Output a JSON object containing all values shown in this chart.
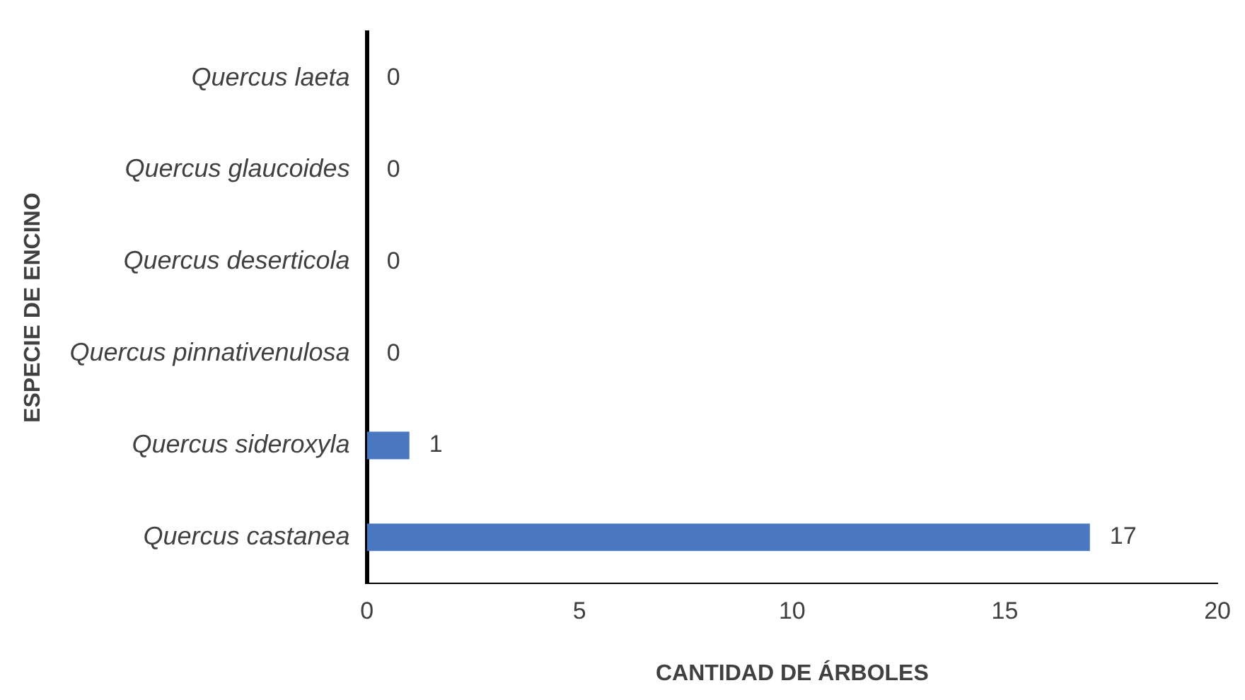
{
  "chart_data": {
    "type": "bar",
    "orientation": "horizontal",
    "xlabel": "CANTIDAD DE ÁRBOLES",
    "ylabel": "ESPECIE DE ENCINO",
    "categories": [
      "Quercus laeta",
      "Quercus glaucoides",
      "Quercus deserticola",
      "Quercus pinnativenulosa",
      "Quercus sideroxyla",
      "Quercus castanea"
    ],
    "values": [
      0,
      0,
      0,
      0,
      1,
      17
    ],
    "color": "#4a78c0",
    "xlim": [
      0,
      20
    ],
    "xticks": [
      0,
      5,
      10,
      15,
      20
    ],
    "grid": false,
    "legend": false,
    "data_labels": true
  }
}
